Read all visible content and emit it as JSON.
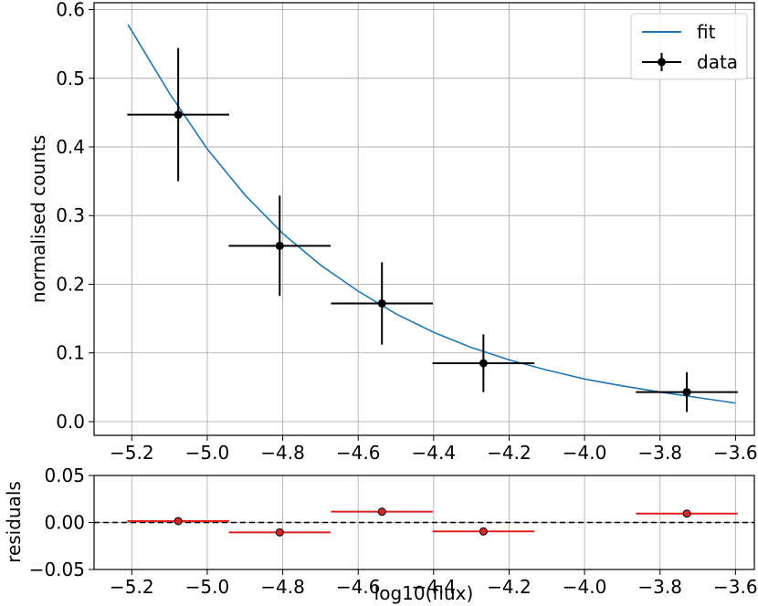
{
  "chart_data": [
    {
      "type": "scatter",
      "panel": "main",
      "ylabel": "normalised counts",
      "xlim": [
        -5.3,
        -3.55
      ],
      "ylim": [
        -0.02,
        0.61
      ],
      "xticks": [
        -5.2,
        -5.0,
        -4.8,
        -4.6,
        -4.4,
        -4.2,
        -4.0,
        -3.8,
        -3.6
      ],
      "xtick_labels": [
        "−5.2",
        "−5.0",
        "−4.8",
        "−4.6",
        "−4.4",
        "−4.2",
        "−4.0",
        "−3.8",
        "−3.6"
      ],
      "yticks": [
        0.0,
        0.1,
        0.2,
        0.3,
        0.4,
        0.5,
        0.6
      ],
      "ytick_labels": [
        "0.0",
        "0.1",
        "0.2",
        "0.3",
        "0.4",
        "0.5",
        "0.6"
      ],
      "grid": true,
      "legend": {
        "placement": "top-right",
        "entries": [
          "fit",
          "data"
        ]
      },
      "series": [
        {
          "name": "fit",
          "kind": "line",
          "color": "#1f77b4",
          "x": [
            -5.21,
            -5.1,
            -5.0,
            -4.9,
            -4.8,
            -4.7,
            -4.6,
            -4.5,
            -4.4,
            -4.3,
            -4.2,
            -4.1,
            -4.0,
            -3.9,
            -3.8,
            -3.7,
            -3.6
          ],
          "y": [
            0.578,
            0.478,
            0.397,
            0.33,
            0.274,
            0.228,
            0.19,
            0.157,
            0.13,
            0.108,
            0.09,
            0.075,
            0.062,
            0.052,
            0.043,
            0.035,
            0.027
          ]
        },
        {
          "name": "data",
          "kind": "errorbar",
          "color": "#000000",
          "x": [
            -5.077,
            -4.808,
            -4.537,
            -4.268,
            -3.729
          ],
          "y": [
            0.447,
            0.256,
            0.172,
            0.085,
            0.043
          ],
          "xerr": [
            0.135,
            0.135,
            0.135,
            0.135,
            0.135
          ],
          "yerr": [
            0.097,
            0.073,
            0.06,
            0.042,
            0.029
          ]
        }
      ]
    },
    {
      "type": "scatter",
      "panel": "residuals",
      "xlabel": "log10(flux)",
      "ylabel": "residuals",
      "xlim": [
        -5.3,
        -3.55
      ],
      "ylim": [
        -0.05,
        0.05
      ],
      "xticks": [
        -5.2,
        -5.0,
        -4.8,
        -4.6,
        -4.4,
        -4.2,
        -4.0,
        -3.8,
        -3.6
      ],
      "xtick_labels": [
        "−5.2",
        "−5.0",
        "−4.8",
        "−4.6",
        "−4.4",
        "−4.2",
        "−4.0",
        "−3.8",
        "−3.6"
      ],
      "yticks": [
        -0.05,
        0.0,
        0.05
      ],
      "ytick_labels": [
        "−0.05",
        "0.00",
        "0.05"
      ],
      "grid": true,
      "zero_line": {
        "y": 0.0,
        "style": "dashed",
        "color": "#000000"
      },
      "series": [
        {
          "kind": "errorbar",
          "color": "#e02020",
          "marker_fill": "#d62728",
          "x": [
            -5.077,
            -4.808,
            -4.537,
            -4.268,
            -3.729
          ],
          "y": [
            0.0015,
            -0.0105,
            0.0115,
            -0.0095,
            0.0095
          ],
          "xerr": [
            0.135,
            0.135,
            0.135,
            0.135,
            0.135
          ]
        }
      ]
    }
  ]
}
